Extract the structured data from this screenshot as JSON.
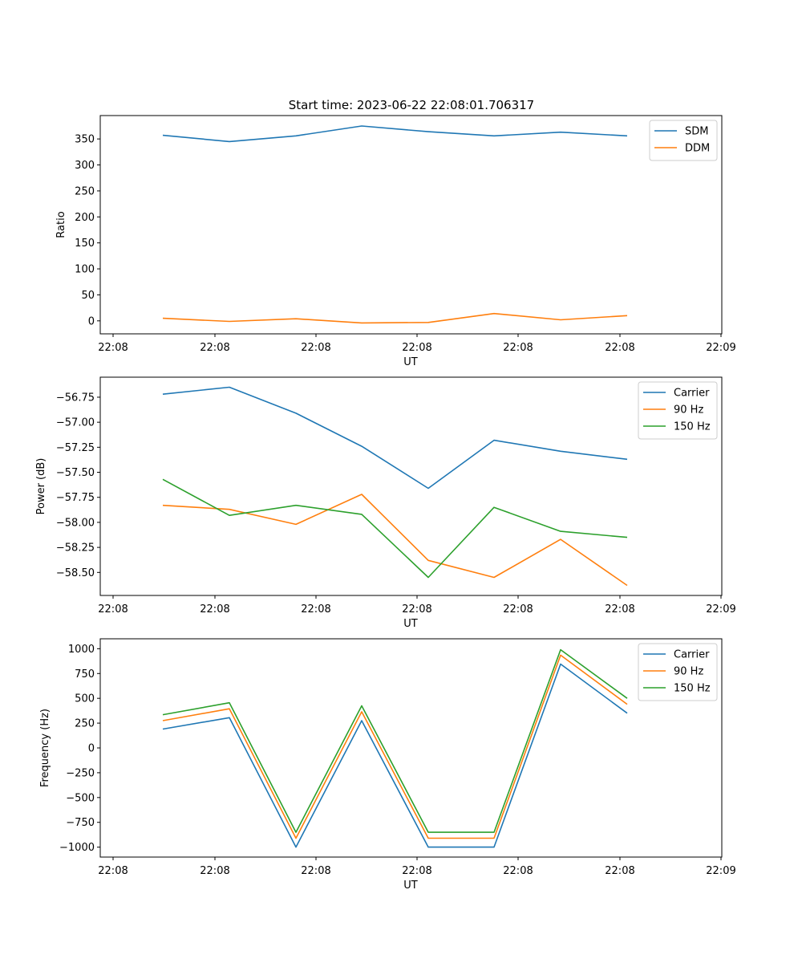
{
  "figure": {
    "title": "Start time: 2023-06-22 22:08:01.706317"
  },
  "colors": {
    "blue": "#1f77b4",
    "orange": "#ff7f0e",
    "green": "#2ca02c"
  },
  "chart_data": [
    {
      "type": "line",
      "xlabel": "UT",
      "ylabel": "Ratio",
      "x_tick_labels": [
        "22:08",
        "22:08",
        "22:08",
        "22:08",
        "22:08",
        "22:08",
        "22:08",
        "22:09"
      ],
      "x_index": [
        0.5,
        1.15,
        1.8,
        2.45,
        3.1,
        3.75,
        4.4,
        5.05
      ],
      "xlim": [
        -0.12,
        6.0
      ],
      "ylim": [
        -25,
        395
      ],
      "yticks": [
        0,
        50,
        100,
        150,
        200,
        250,
        300,
        350
      ],
      "legend_position": "upper right",
      "series": [
        {
          "name": "SDM",
          "color": "blue",
          "values": [
            357,
            345,
            356,
            375,
            364,
            356,
            363,
            356
          ]
        },
        {
          "name": "DDM",
          "color": "orange",
          "values": [
            5,
            -1,
            4,
            -4,
            -3,
            14,
            2,
            10
          ]
        }
      ]
    },
    {
      "type": "line",
      "xlabel": "UT",
      "ylabel": "Power (dB)",
      "x_tick_labels": [
        "22:08",
        "22:08",
        "22:08",
        "22:08",
        "22:08",
        "22:08",
        "22:08",
        "22:09"
      ],
      "x_index": [
        0.5,
        1.15,
        1.8,
        2.45,
        3.1,
        3.75,
        4.4,
        5.05
      ],
      "xlim": [
        -0.12,
        6.0
      ],
      "ylim": [
        -58.73,
        -56.55
      ],
      "yticks": [
        -58.5,
        -58.25,
        -58.0,
        -57.75,
        -57.5,
        -57.25,
        -57.0,
        -56.75
      ],
      "ytick_labels": [
        "−58.50",
        "−58.25",
        "−58.00",
        "−57.75",
        "−57.50",
        "−57.25",
        "−57.00",
        "−56.75"
      ],
      "legend_position": "upper right",
      "series": [
        {
          "name": "Carrier",
          "color": "blue",
          "values": [
            -56.72,
            -56.65,
            -56.91,
            -57.24,
            -57.66,
            -57.18,
            -57.29,
            -57.37
          ]
        },
        {
          "name": "90 Hz",
          "color": "orange",
          "values": [
            -57.83,
            -57.87,
            -58.02,
            -57.72,
            -58.38,
            -58.55,
            -58.17,
            -58.63
          ]
        },
        {
          "name": "150 Hz",
          "color": "green",
          "values": [
            -57.57,
            -57.93,
            -57.83,
            -57.92,
            -58.55,
            -57.85,
            -58.09,
            -58.15
          ]
        }
      ]
    },
    {
      "type": "line",
      "xlabel": "UT",
      "ylabel": "Frequency (Hz)",
      "x_tick_labels": [
        "22:08",
        "22:08",
        "22:08",
        "22:08",
        "22:08",
        "22:08",
        "22:08",
        "22:09"
      ],
      "x_index": [
        0.5,
        1.15,
        1.8,
        2.45,
        3.1,
        3.75,
        4.4,
        5.05
      ],
      "xlim": [
        -0.12,
        6.0
      ],
      "ylim": [
        -1100,
        1100
      ],
      "yticks": [
        -1000,
        -750,
        -500,
        -250,
        0,
        250,
        500,
        750,
        1000
      ],
      "ytick_labels": [
        "−1000",
        "−750",
        "−500",
        "−250",
        "0",
        "250",
        "500",
        "750",
        "1000"
      ],
      "legend_position": "upper right",
      "series": [
        {
          "name": "Carrier",
          "color": "blue",
          "values": [
            190,
            305,
            -1000,
            275,
            -1000,
            -1000,
            845,
            350
          ]
        },
        {
          "name": "90 Hz",
          "color": "orange",
          "values": [
            275,
            395,
            -910,
            365,
            -910,
            -910,
            935,
            440
          ]
        },
        {
          "name": "150 Hz",
          "color": "green",
          "values": [
            335,
            455,
            -850,
            425,
            -850,
            -850,
            990,
            500
          ]
        }
      ]
    }
  ]
}
